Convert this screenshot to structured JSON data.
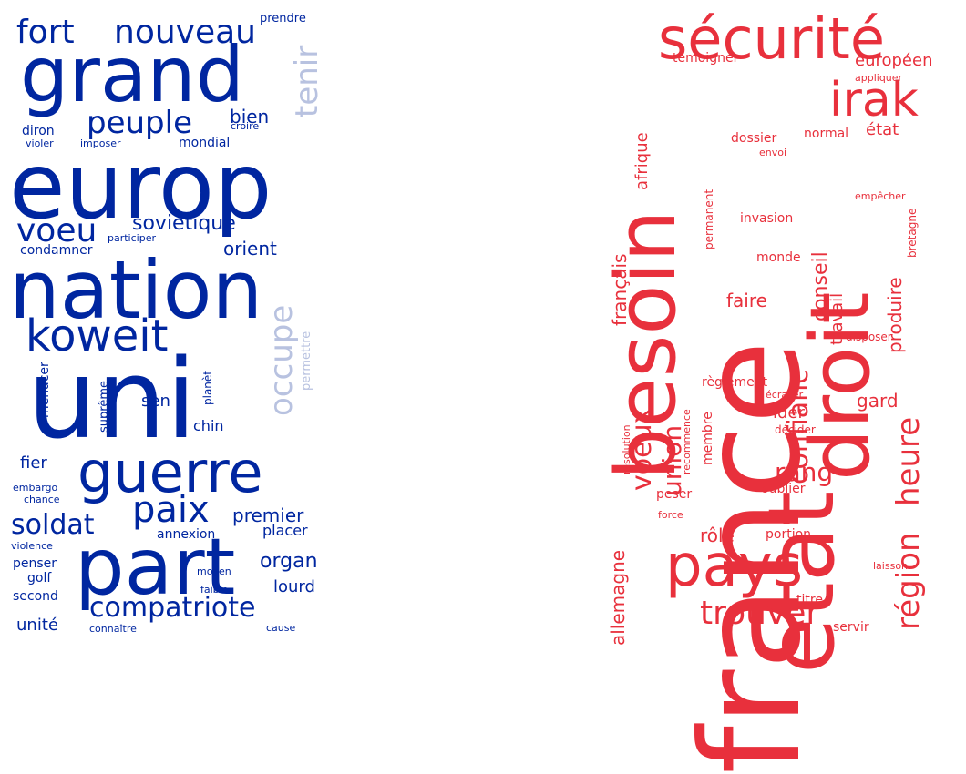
{
  "clouds": [
    {
      "id": "left",
      "color": "#0026a0",
      "light_color": "#b8c2e0",
      "words": [
        {
          "text": "grand",
          "weight": 5
        },
        {
          "text": "europ",
          "weight": 5
        },
        {
          "text": "nation",
          "weight": 5
        },
        {
          "text": "uni",
          "weight": 6
        },
        {
          "text": "part",
          "weight": 5
        },
        {
          "text": "guerre",
          "weight": 4
        },
        {
          "text": "koweit",
          "weight": 4
        },
        {
          "text": "fort",
          "weight": 3
        },
        {
          "text": "nouveau",
          "weight": 3
        },
        {
          "text": "peuple",
          "weight": 3
        },
        {
          "text": "voeu",
          "weight": 3
        },
        {
          "text": "soldat",
          "weight": 3
        },
        {
          "text": "paix",
          "weight": 3
        },
        {
          "text": "compatriote",
          "weight": 3
        },
        {
          "text": "tenir",
          "weight": 3
        },
        {
          "text": "occupe",
          "weight": 3
        },
        {
          "text": "soviétique",
          "weight": 2
        },
        {
          "text": "orient",
          "weight": 2
        },
        {
          "text": "bien",
          "weight": 2
        },
        {
          "text": "premier",
          "weight": 2
        },
        {
          "text": "organ",
          "weight": 2
        },
        {
          "text": "lourd",
          "weight": 2
        },
        {
          "text": "unité",
          "weight": 2
        },
        {
          "text": "sen",
          "weight": 2
        },
        {
          "text": "fier",
          "weight": 2
        },
        {
          "text": "chin",
          "weight": 2
        },
        {
          "text": "mondial",
          "weight": 1
        },
        {
          "text": "diron",
          "weight": 1
        },
        {
          "text": "croire",
          "weight": 1
        },
        {
          "text": "violer",
          "weight": 1
        },
        {
          "text": "imposer",
          "weight": 1
        },
        {
          "text": "condamner",
          "weight": 1
        },
        {
          "text": "participer",
          "weight": 1
        },
        {
          "text": "prendre",
          "weight": 1
        },
        {
          "text": "menacer",
          "weight": 1
        },
        {
          "text": "suprême",
          "weight": 1
        },
        {
          "text": "planèt",
          "weight": 1
        },
        {
          "text": "permettre",
          "weight": 1
        },
        {
          "text": "embargo",
          "weight": 1
        },
        {
          "text": "chance",
          "weight": 1
        },
        {
          "text": "annexion",
          "weight": 1
        },
        {
          "text": "placer",
          "weight": 1
        },
        {
          "text": "violence",
          "weight": 1
        },
        {
          "text": "penser",
          "weight": 1
        },
        {
          "text": "golf",
          "weight": 1
        },
        {
          "text": "second",
          "weight": 1
        },
        {
          "text": "moyen",
          "weight": 1
        },
        {
          "text": "faible",
          "weight": 1
        },
        {
          "text": "connaître",
          "weight": 1
        },
        {
          "text": "cause",
          "weight": 1
        }
      ]
    },
    {
      "id": "right",
      "color": "#e8303c",
      "light_color": "#f3a0a6",
      "words": [
        {
          "text": "sécurité",
          "weight": 4
        },
        {
          "text": "france",
          "weight": 6
        },
        {
          "text": "besoin",
          "weight": 5
        },
        {
          "text": "etat",
          "weight": 5
        },
        {
          "text": "droit",
          "weight": 5
        },
        {
          "text": "irak",
          "weight": 4
        },
        {
          "text": "pays",
          "weight": 4
        },
        {
          "text": "trouver",
          "weight": 3
        },
        {
          "text": "région",
          "weight": 3
        },
        {
          "text": "heure",
          "weight": 3
        },
        {
          "text": "confianc",
          "weight": 3
        },
        {
          "text": "voeux",
          "weight": 3
        },
        {
          "text": "union",
          "weight": 3
        },
        {
          "text": "rang",
          "weight": 3
        },
        {
          "text": "conseil",
          "weight": 2
        },
        {
          "text": "européen",
          "weight": 2
        },
        {
          "text": "état",
          "weight": 2
        },
        {
          "text": "témoigner",
          "weight": 1
        },
        {
          "text": "appliquer",
          "weight": 1
        },
        {
          "text": "afrique",
          "weight": 2
        },
        {
          "text": "dossier",
          "weight": 1
        },
        {
          "text": "normal",
          "weight": 1
        },
        {
          "text": "envoi",
          "weight": 1
        },
        {
          "text": "empêcher",
          "weight": 1
        },
        {
          "text": "invasion",
          "weight": 1
        },
        {
          "text": "permanent",
          "weight": 1
        },
        {
          "text": "bretagne",
          "weight": 1
        },
        {
          "text": "français",
          "weight": 2
        },
        {
          "text": "produire",
          "weight": 2
        },
        {
          "text": "travail",
          "weight": 2
        },
        {
          "text": "monde",
          "weight": 1
        },
        {
          "text": "faire",
          "weight": 2
        },
        {
          "text": "disposer",
          "weight": 1
        },
        {
          "text": "règlement",
          "weight": 1
        },
        {
          "text": "écraser",
          "weight": 1
        },
        {
          "text": "gard",
          "weight": 2
        },
        {
          "text": "ider",
          "weight": 2
        },
        {
          "text": "résolution",
          "weight": 1
        },
        {
          "text": "recommence",
          "weight": 1
        },
        {
          "text": "membre",
          "weight": 1
        },
        {
          "text": "décider",
          "weight": 1
        },
        {
          "text": "peser",
          "weight": 1
        },
        {
          "text": "oublier",
          "weight": 1
        },
        {
          "text": "force",
          "weight": 1
        },
        {
          "text": "rôle",
          "weight": 2
        },
        {
          "text": "portion",
          "weight": 1
        },
        {
          "text": "allemagne",
          "weight": 2
        },
        {
          "text": "laisson",
          "weight": 1
        },
        {
          "text": "titre",
          "weight": 1
        },
        {
          "text": "servir",
          "weight": 1
        }
      ]
    }
  ]
}
